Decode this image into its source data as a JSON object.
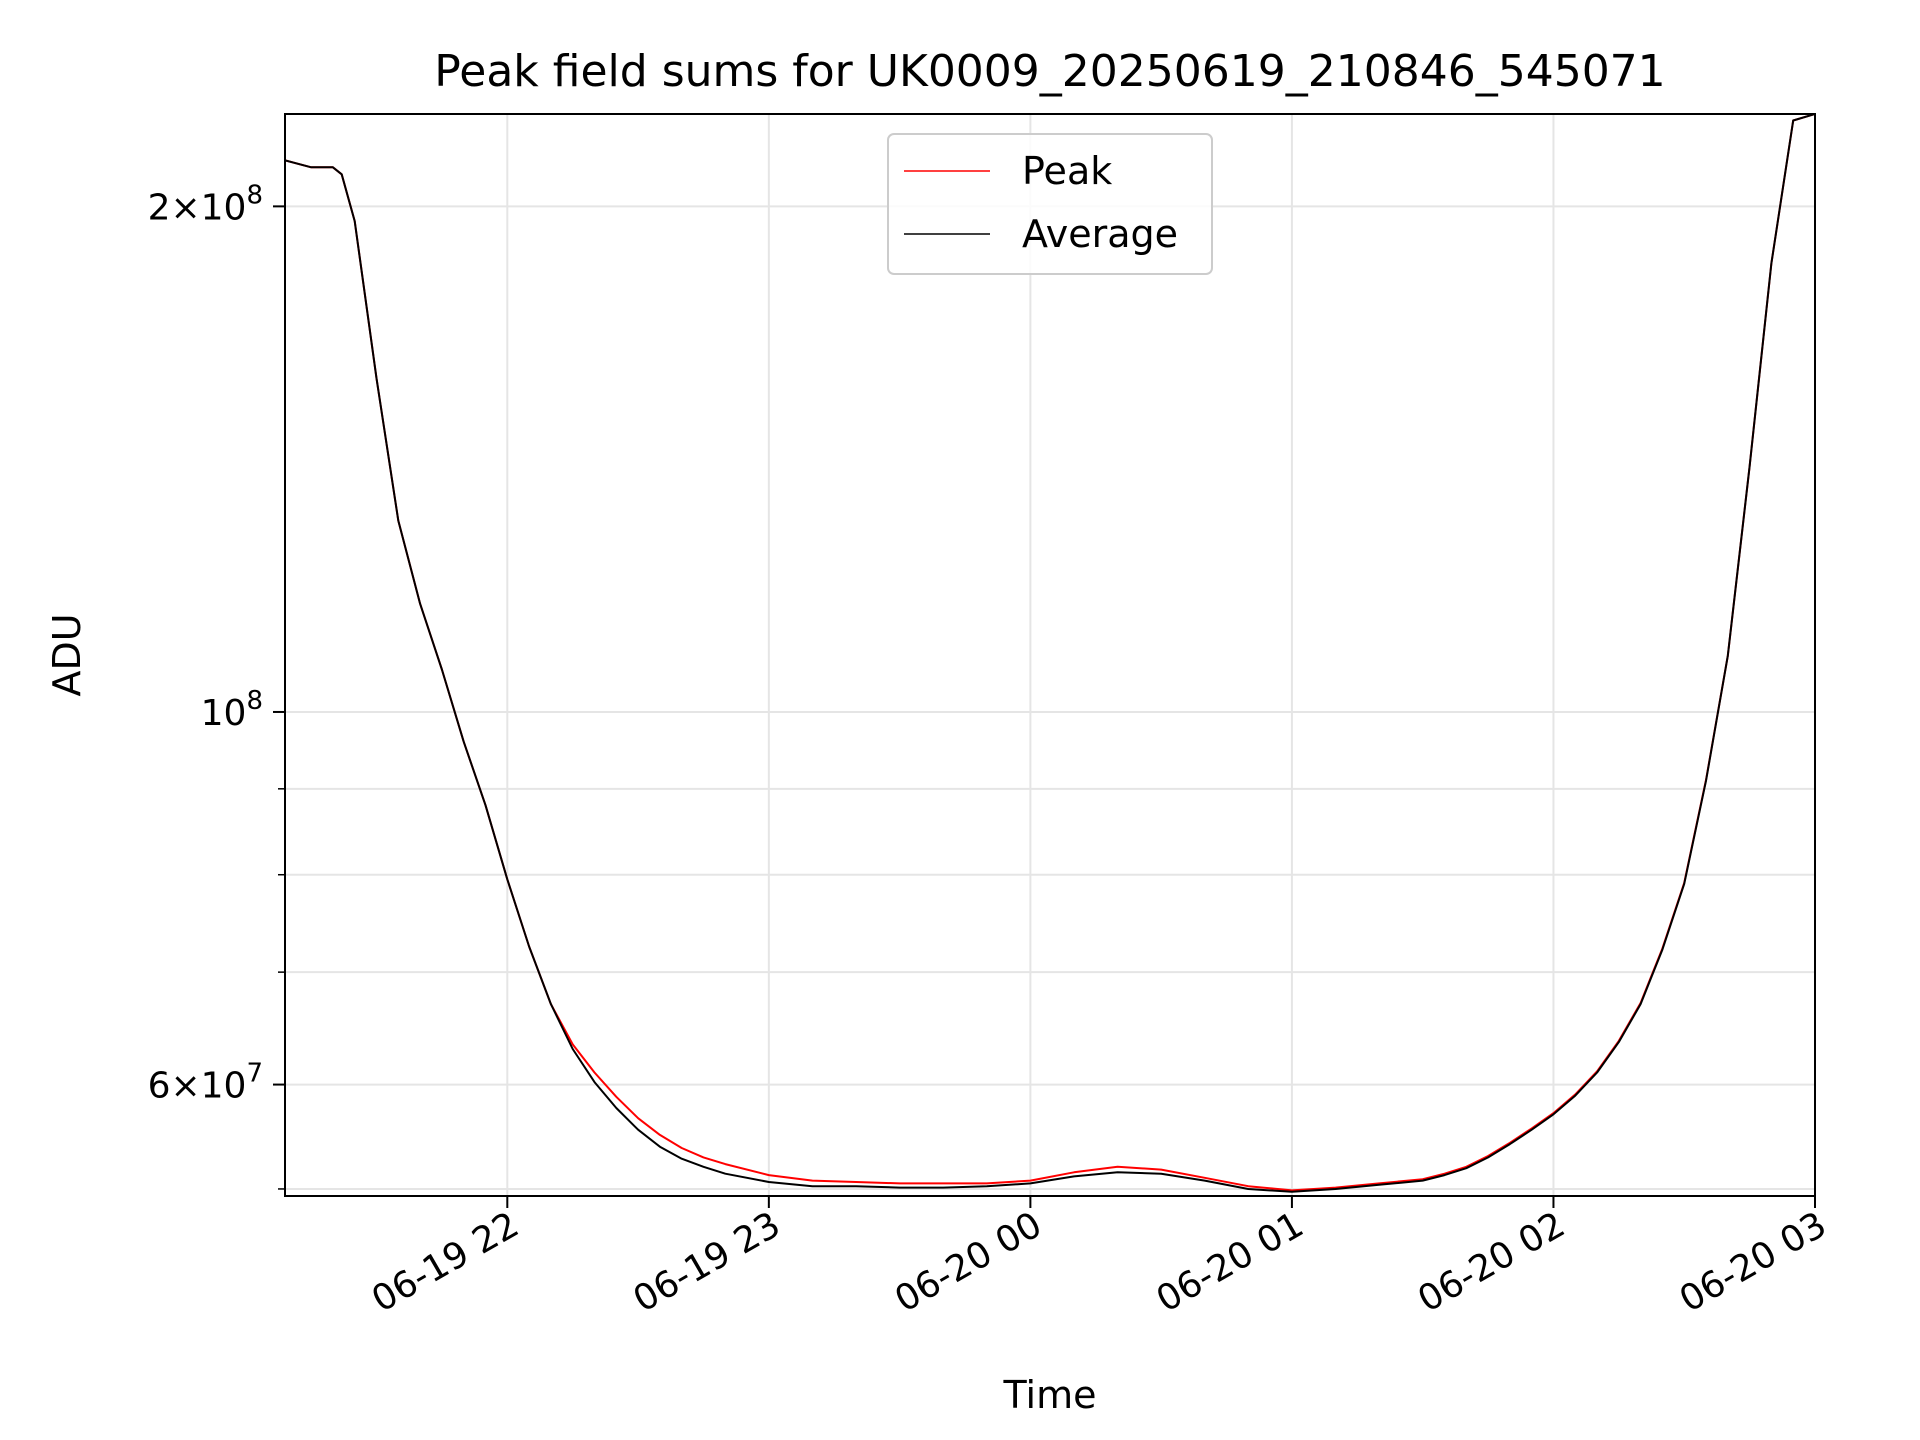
{
  "chart_data": {
    "type": "line",
    "title": "Peak field sums for UK0009_20250619_210846_545071",
    "xlabel": "Time",
    "ylabel": "ADU",
    "yscale": "log",
    "ylim": [
      51500000,
      227000000
    ],
    "xlim": [
      "06-19 21:09",
      "06-20 03:00"
    ],
    "grid": true,
    "legend_position": "upper center",
    "x_ticks": [
      {
        "value": "06-19 22:00",
        "label": "06-19 22"
      },
      {
        "value": "06-19 23:00",
        "label": "06-19 23"
      },
      {
        "value": "06-20 00:00",
        "label": "06-20 00"
      },
      {
        "value": "06-20 01:00",
        "label": "06-20 01"
      },
      {
        "value": "06-20 02:00",
        "label": "06-20 02"
      },
      {
        "value": "06-20 03:00",
        "label": "06-20 03"
      }
    ],
    "y_major_ticks": [
      {
        "value": 200000000,
        "mantissa": "2×",
        "base": "10",
        "exp": "8"
      },
      {
        "value": 100000000,
        "mantissa": "",
        "base": "10",
        "exp": "8"
      },
      {
        "value": 60000000,
        "mantissa": "6×",
        "base": "10",
        "exp": "7"
      }
    ],
    "y_minor_ticks": [
      90000000,
      80000000,
      70000000,
      52000000
    ],
    "x": [
      "06-19 21:09",
      "06-19 21:15",
      "06-19 21:18",
      "06-19 21:20",
      "06-19 21:22",
      "06-19 21:25",
      "06-19 21:30",
      "06-19 21:35",
      "06-19 21:40",
      "06-19 21:45",
      "06-19 21:50",
      "06-19 21:55",
      "06-19 22:00",
      "06-19 22:05",
      "06-19 22:10",
      "06-19 22:15",
      "06-19 22:20",
      "06-19 22:25",
      "06-19 22:30",
      "06-19 22:35",
      "06-19 22:40",
      "06-19 22:45",
      "06-19 22:50",
      "06-19 23:00",
      "06-19 23:10",
      "06-19 23:20",
      "06-19 23:30",
      "06-19 23:40",
      "06-19 23:50",
      "06-20 00:00",
      "06-20 00:10",
      "06-20 00:20",
      "06-20 00:30",
      "06-20 00:40",
      "06-20 00:50",
      "06-20 01:00",
      "06-20 01:10",
      "06-20 01:20",
      "06-20 01:30",
      "06-20 01:35",
      "06-20 01:40",
      "06-20 01:45",
      "06-20 01:50",
      "06-20 01:55",
      "06-20 02:00",
      "06-20 02:05",
      "06-20 02:10",
      "06-20 02:15",
      "06-20 02:20",
      "06-20 02:25",
      "06-20 02:30",
      "06-20 02:35",
      "06-20 02:40",
      "06-20 02:45",
      "06-20 02:50",
      "06-20 02:55",
      "06-20 03:00"
    ],
    "series": [
      {
        "name": "Average",
        "color": "#000000",
        "values": [
          213000000,
          211000000,
          211000000,
          211000000,
          209000000,
          196000000,
          158000000,
          130000000,
          116000000,
          106000000,
          96000000,
          88000000,
          79500000,
          72500000,
          67000000,
          63000000,
          60200000,
          58100000,
          56400000,
          55100000,
          54200000,
          53600000,
          53100000,
          52500000,
          52200000,
          52200000,
          52100000,
          52100000,
          52200000,
          52400000,
          52900000,
          53200000,
          53100000,
          52600000,
          52000000,
          51800000,
          52000000,
          52300000,
          52600000,
          53000000,
          53500000,
          54300000,
          55300000,
          56400000,
          57600000,
          59100000,
          61000000,
          63600000,
          67000000,
          72200000,
          79000000,
          91000000,
          108000000,
          140000000,
          185000000,
          225000000,
          227000000
        ]
      },
      {
        "name": "Peak",
        "color": "#ff0000",
        "values": [
          213000000,
          211000000,
          211000000,
          211000000,
          209000000,
          196000000,
          158000000,
          130000000,
          116000000,
          106000000,
          96000000,
          88000000,
          79500000,
          72500000,
          67000000,
          63400000,
          61000000,
          59000000,
          57300000,
          56000000,
          55000000,
          54300000,
          53800000,
          53000000,
          52600000,
          52500000,
          52400000,
          52400000,
          52400000,
          52600000,
          53200000,
          53600000,
          53400000,
          52800000,
          52200000,
          51900000,
          52100000,
          52400000,
          52700000,
          53100000,
          53600000,
          54400000,
          55400000,
          56500000,
          57700000,
          59200000,
          61100000,
          63700000,
          67100000,
          72300000,
          79100000,
          91100000,
          108000000,
          140000000,
          185000000,
          225000000,
          227000000
        ]
      }
    ]
  }
}
